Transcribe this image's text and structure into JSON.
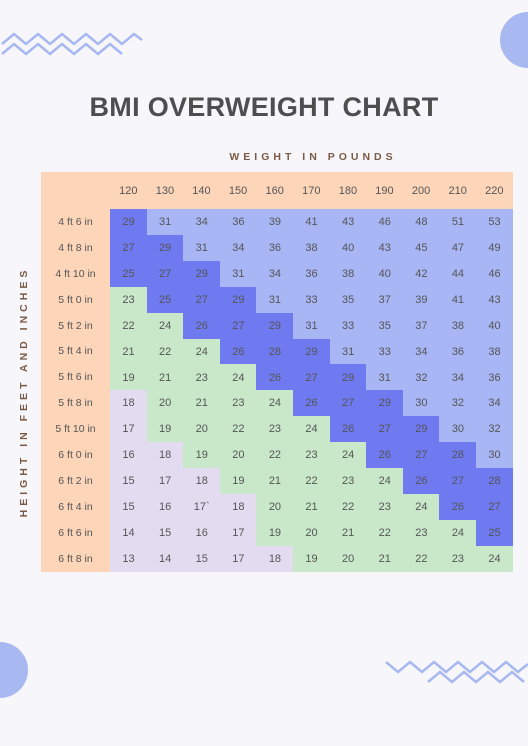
{
  "title": "BMI OVERWEIGHT CHART",
  "x_axis_label": "WEIGHT IN POUNDS",
  "y_axis_label": "HEIGHT IN FEET AND INCHES",
  "colors": {
    "background": "#f6f6fb",
    "header": "#fdd5b9",
    "underweight": "#e3dcf1",
    "normal": "#c9e8c9",
    "overweight_diagonal": "#6f7af0",
    "obese": "#a8b6f5",
    "decoration": "#a8b8f0"
  },
  "chart_data": {
    "type": "table",
    "weights": [
      "120",
      "130",
      "140",
      "150",
      "160",
      "170",
      "180",
      "190",
      "200",
      "210",
      "220"
    ],
    "heights": [
      "4 ft 6 in",
      "4 ft 8 in",
      "4 ft 10 in",
      "5 ft 0 in",
      "5 ft 2 in",
      "5 ft 4 in",
      "5 ft 6 in",
      "5 ft 8 in",
      "5 ft 10 in",
      "6 ft 0 in",
      "6 ft 2 in",
      "6 ft 4 in",
      "6 ft 6 in",
      "6 ft 8 in"
    ],
    "values": [
      [
        "29",
        "31",
        "34",
        "36",
        "39",
        "41",
        "43",
        "46",
        "48",
        "51",
        "53"
      ],
      [
        "27",
        "29",
        "31",
        "34",
        "36",
        "38",
        "40",
        "43",
        "45",
        "47",
        "49"
      ],
      [
        "25",
        "27",
        "29",
        "31",
        "34",
        "36",
        "38",
        "40",
        "42",
        "44",
        "46"
      ],
      [
        "23",
        "25",
        "27",
        "29",
        "31",
        "33",
        "35",
        "37",
        "39",
        "41",
        "43"
      ],
      [
        "22",
        "24",
        "26",
        "27",
        "29",
        "31",
        "33",
        "35",
        "37",
        "38",
        "40"
      ],
      [
        "21",
        "22",
        "24",
        "26",
        "28",
        "29",
        "31",
        "33",
        "34",
        "36",
        "38"
      ],
      [
        "19",
        "21",
        "23",
        "24",
        "26",
        "27",
        "29",
        "31",
        "32",
        "34",
        "36"
      ],
      [
        "18",
        "20",
        "21",
        "23",
        "24",
        "26",
        "27",
        "29",
        "30",
        "32",
        "34"
      ],
      [
        "17",
        "19",
        "20",
        "22",
        "23",
        "24",
        "26",
        "27",
        "29",
        "30",
        "32"
      ],
      [
        "16",
        "18",
        "19",
        "20",
        "22",
        "23",
        "24",
        "26",
        "27",
        "28",
        "30"
      ],
      [
        "15",
        "17",
        "18",
        "19",
        "21",
        "22",
        "23",
        "24",
        "26",
        "27",
        "28"
      ],
      [
        "15",
        "16",
        "17`",
        "18",
        "20",
        "21",
        "22",
        "23",
        "24",
        "26",
        "27"
      ],
      [
        "14",
        "15",
        "16",
        "17",
        "19",
        "20",
        "21",
        "22",
        "23",
        "24",
        "25"
      ],
      [
        "13",
        "14",
        "15",
        "17",
        "18",
        "19",
        "20",
        "21",
        "22",
        "23",
        "24"
      ]
    ],
    "categories": [
      [
        "D",
        "O",
        "O",
        "O",
        "O",
        "O",
        "O",
        "O",
        "O",
        "O",
        "O"
      ],
      [
        "D",
        "D",
        "O",
        "O",
        "O",
        "O",
        "O",
        "O",
        "O",
        "O",
        "O"
      ],
      [
        "D",
        "D",
        "D",
        "O",
        "O",
        "O",
        "O",
        "O",
        "O",
        "O",
        "O"
      ],
      [
        "N",
        "D",
        "D",
        "D",
        "O",
        "O",
        "O",
        "O",
        "O",
        "O",
        "O"
      ],
      [
        "N",
        "N",
        "D",
        "D",
        "D",
        "O",
        "O",
        "O",
        "O",
        "O",
        "O"
      ],
      [
        "N",
        "N",
        "N",
        "D",
        "D",
        "D",
        "O",
        "O",
        "O",
        "O",
        "O"
      ],
      [
        "N",
        "N",
        "N",
        "N",
        "D",
        "D",
        "D",
        "O",
        "O",
        "O",
        "O"
      ],
      [
        "U",
        "N",
        "N",
        "N",
        "N",
        "D",
        "D",
        "D",
        "O",
        "O",
        "O"
      ],
      [
        "U",
        "N",
        "N",
        "N",
        "N",
        "N",
        "D",
        "D",
        "D",
        "O",
        "O"
      ],
      [
        "U",
        "U",
        "N",
        "N",
        "N",
        "N",
        "N",
        "D",
        "D",
        "D",
        "O"
      ],
      [
        "U",
        "U",
        "U",
        "N",
        "N",
        "N",
        "N",
        "N",
        "D",
        "D",
        "D"
      ],
      [
        "U",
        "U",
        "U",
        "U",
        "N",
        "N",
        "N",
        "N",
        "N",
        "D",
        "D"
      ],
      [
        "U",
        "U",
        "U",
        "U",
        "N",
        "N",
        "N",
        "N",
        "N",
        "N",
        "D"
      ],
      [
        "U",
        "U",
        "U",
        "U",
        "U",
        "N",
        "N",
        "N",
        "N",
        "N",
        "N"
      ]
    ]
  }
}
